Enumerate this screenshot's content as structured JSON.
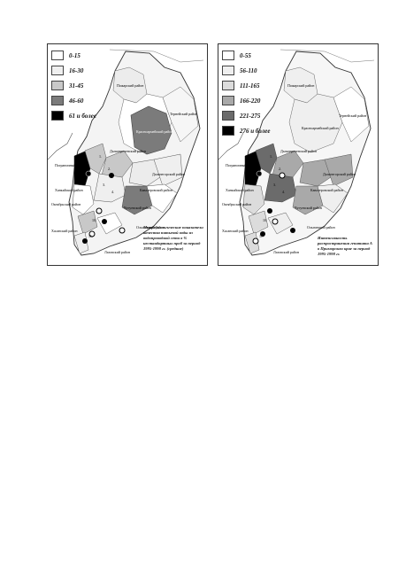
{
  "maps": [
    {
      "legend": [
        {
          "label": "0-15",
          "color": "#ffffff"
        },
        {
          "label": "16-30",
          "color": "#efefef"
        },
        {
          "label": "31-45",
          "color": "#c8c8c8"
        },
        {
          "label": "46-60",
          "color": "#7b7b7b"
        },
        {
          "label": "61 и более",
          "color": "#000000"
        }
      ],
      "caption": "Микробиологические показатели качества питьевой воды из водопроводной сети в % нестандартных проб за период 1995-1998 гг. (средние)",
      "regions": {
        "pozharsky": "Пожарский район",
        "krasnoarmeysky": "Красноармейский район",
        "terneisky": "Тернейский район",
        "dalnerechensky": "Дальнереченский район",
        "kirovsky": "Кировский район",
        "pogranichny": "Пограничный район",
        "khankaysky": "Ханкайский район",
        "oktyabrsky": "Октябрьский район",
        "nadezhdinsky": "Надеждинский район",
        "khasansky": "Хасанский район",
        "chuguevsky": "Чугуевский район",
        "ussuriysky": "Уссурийский район",
        "olginsky": "Ольгинский район",
        "kavalerovsky": "Кавалеровский район",
        "dalnegorsky": "Дальнегорский район",
        "lazovsky": "Лазовский район",
        "partizansky": "Партизанский район",
        "shkotovsky": "Шкотовский район",
        "yakovlevsky": "Яковлевский район"
      }
    },
    {
      "legend": [
        {
          "label": "0-55",
          "color": "#ffffff"
        },
        {
          "label": "56-110",
          "color": "#efefef"
        },
        {
          "label": "111-165",
          "color": "#dcdcdc"
        },
        {
          "label": "166-220",
          "color": "#a9a9a9"
        },
        {
          "label": "221-275",
          "color": "#6b6b6b"
        },
        {
          "label": "276 и более",
          "color": "#000000"
        }
      ],
      "caption": "Интенсивность распространения гепатита А в Приморском крае за период 1995-1998 гг.",
      "regions": {
        "pozharsky": "Пожарский район",
        "krasnoarmeysky": "Красноармейский район",
        "terneisky": "Тернейский район",
        "dalnerechensky": "Дальнереченский район",
        "kirovsky": "Кировский район",
        "pogranichny": "Пограничный район",
        "khankaysky": "Ханкайский район",
        "oktyabrsky": "Октябрьский район",
        "nadezhdinsky": "Надеждинский район",
        "khasansky": "Хасанский район",
        "chuguevsky": "Чугуевский район",
        "ussuriysky": "Уссурийский район",
        "olginsky": "Ольгинский район",
        "kavalerovsky": "Кавалеровский район",
        "dalnegorsky": "Дальнегорский район",
        "lazovsky": "Лазовский район",
        "partizansky": "Партизанский район",
        "shkotovsky": "Шкотовский район",
        "yakovlevsky": "Яковлевский район"
      }
    }
  ]
}
